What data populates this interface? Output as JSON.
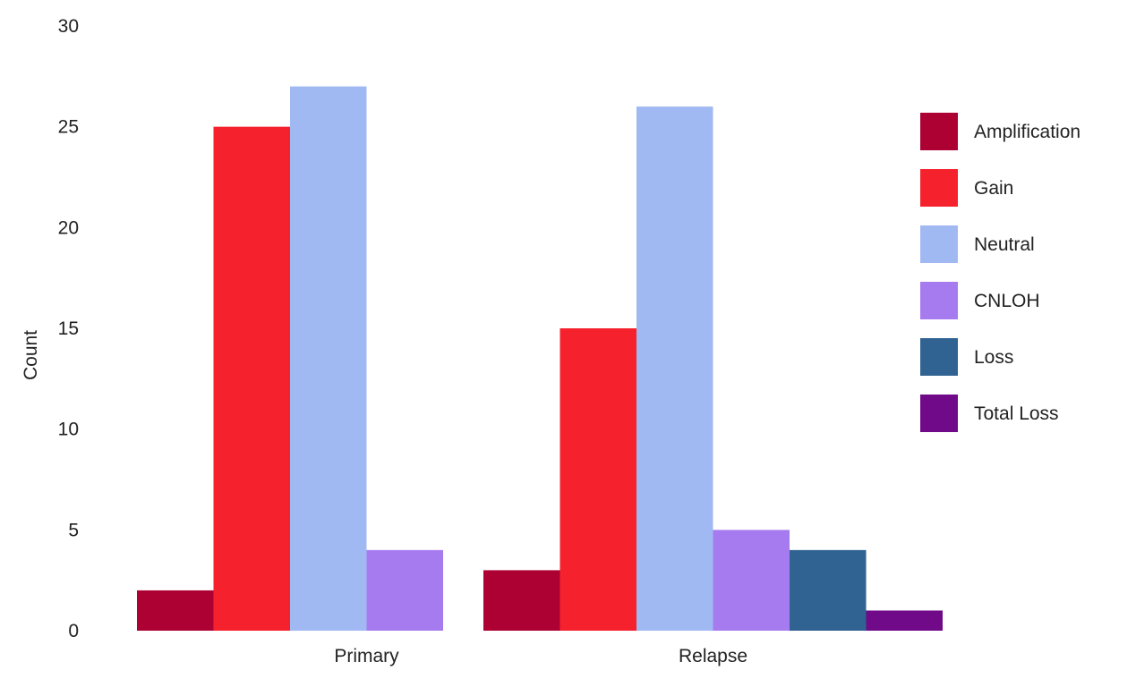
{
  "chart_data": {
    "type": "bar",
    "title": "",
    "xlabel": "",
    "ylabel": "Count",
    "ylim": [
      0,
      30
    ],
    "yticks": [
      0,
      5,
      10,
      15,
      20,
      25,
      30
    ],
    "grid": false,
    "legend_position": "right",
    "categories": [
      "Primary",
      "Relapse"
    ],
    "series": [
      {
        "name": "Amplification",
        "color": "#ad0134",
        "values": [
          2,
          3
        ]
      },
      {
        "name": "Gain",
        "color": "#f5222d",
        "values": [
          25,
          15
        ]
      },
      {
        "name": "Neutral",
        "color": "#a1b9f2",
        "values": [
          27,
          26
        ]
      },
      {
        "name": "CNLOH",
        "color": "#a77bf0",
        "values": [
          4,
          5
        ]
      },
      {
        "name": "Loss",
        "color": "#306392",
        "values": [
          0,
          4
        ]
      },
      {
        "name": "Total Loss",
        "color": "#700a89",
        "values": [
          0,
          1
        ]
      }
    ]
  }
}
